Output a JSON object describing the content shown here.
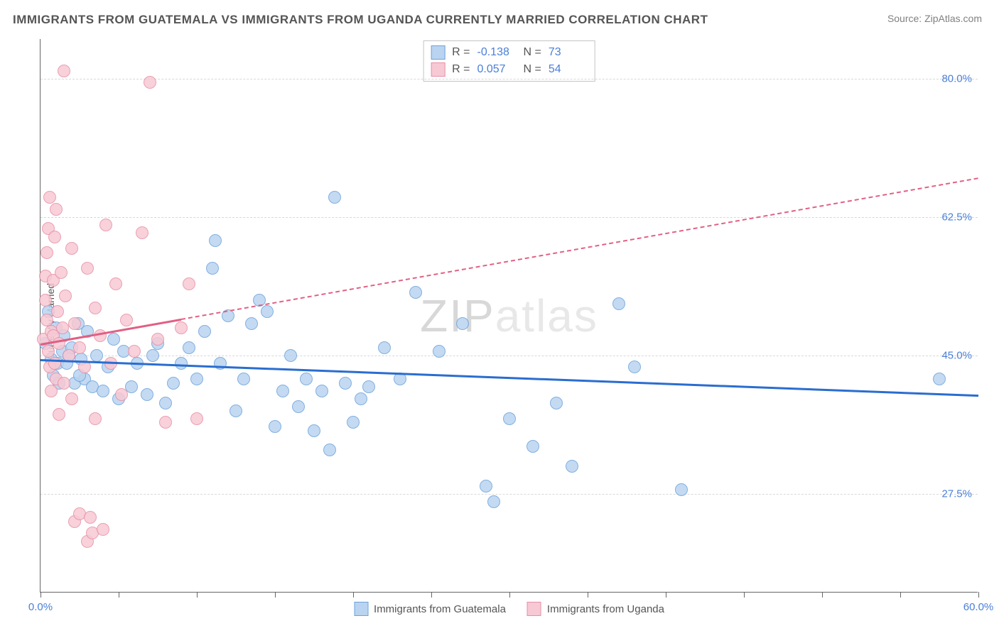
{
  "title": "IMMIGRANTS FROM GUATEMALA VS IMMIGRANTS FROM UGANDA CURRENTLY MARRIED CORRELATION CHART",
  "source": "Source: ZipAtlas.com",
  "ylabel": "Currently Married",
  "watermark_a": "ZIP",
  "watermark_b": "atlas",
  "chart": {
    "type": "scatter",
    "xlim": [
      0,
      60
    ],
    "ylim": [
      15,
      85
    ],
    "yticks": [
      {
        "v": 27.5,
        "label": "27.5%"
      },
      {
        "v": 45.0,
        "label": "45.0%"
      },
      {
        "v": 62.5,
        "label": "62.5%"
      },
      {
        "v": 80.0,
        "label": "80.0%"
      }
    ],
    "xticks": [
      0,
      5,
      10,
      15,
      20,
      25,
      30,
      35,
      40,
      45,
      50,
      55,
      60
    ],
    "xtick_labels": [
      {
        "v": 0,
        "label": "0.0%"
      },
      {
        "v": 60,
        "label": "60.0%"
      }
    ],
    "grid_color": "#d8d8d8",
    "background_color": "#ffffff",
    "marker_radius": 9,
    "series": [
      {
        "id": "guatemala",
        "label": "Immigrants from Guatemala",
        "fill": "#b9d4f0",
        "stroke": "#6ea2db",
        "line_color": "#2a6dd0",
        "line_dashed": false,
        "R": "-0.138",
        "N": "73",
        "trend": {
          "x1": 0,
          "y1": 44.5,
          "x2": 60,
          "y2": 40.0
        },
        "points": [
          [
            0.3,
            46.5
          ],
          [
            0.5,
            50.5
          ],
          [
            0.7,
            44.5
          ],
          [
            0.8,
            42.5
          ],
          [
            1.0,
            48.5
          ],
          [
            1.1,
            44.0
          ],
          [
            1.2,
            41.5
          ],
          [
            1.4,
            45.5
          ],
          [
            1.5,
            47.5
          ],
          [
            1.7,
            44.0
          ],
          [
            1.8,
            45.0
          ],
          [
            2.0,
            46.0
          ],
          [
            2.2,
            41.5
          ],
          [
            2.4,
            49.0
          ],
          [
            2.6,
            44.5
          ],
          [
            2.8,
            42.0
          ],
          [
            3.0,
            48.0
          ],
          [
            3.3,
            41.0
          ],
          [
            3.6,
            45.0
          ],
          [
            4.0,
            40.5
          ],
          [
            4.3,
            43.5
          ],
          [
            4.7,
            47.0
          ],
          [
            5.0,
            39.5
          ],
          [
            5.3,
            45.5
          ],
          [
            5.8,
            41.0
          ],
          [
            6.2,
            44.0
          ],
          [
            6.8,
            40.0
          ],
          [
            7.2,
            45.0
          ],
          [
            7.5,
            46.5
          ],
          [
            8.0,
            39.0
          ],
          [
            8.5,
            41.5
          ],
          [
            9.0,
            44.0
          ],
          [
            9.5,
            46.0
          ],
          [
            10.0,
            42.0
          ],
          [
            10.5,
            48.0
          ],
          [
            11.0,
            56.0
          ],
          [
            11.2,
            59.5
          ],
          [
            11.5,
            44.0
          ],
          [
            12.0,
            50.0
          ],
          [
            12.5,
            38.0
          ],
          [
            13.0,
            42.0
          ],
          [
            13.5,
            49.0
          ],
          [
            14.0,
            52.0
          ],
          [
            14.5,
            50.5
          ],
          [
            15.0,
            36.0
          ],
          [
            15.5,
            40.5
          ],
          [
            16.0,
            45.0
          ],
          [
            16.5,
            38.5
          ],
          [
            17.0,
            42.0
          ],
          [
            17.5,
            35.5
          ],
          [
            18.0,
            40.5
          ],
          [
            18.5,
            33.0
          ],
          [
            18.8,
            65.0
          ],
          [
            19.5,
            41.5
          ],
          [
            20.0,
            36.5
          ],
          [
            20.5,
            39.5
          ],
          [
            21.0,
            41.0
          ],
          [
            22.0,
            46.0
          ],
          [
            23.0,
            42.0
          ],
          [
            24.0,
            53.0
          ],
          [
            25.5,
            45.5
          ],
          [
            27.0,
            49.0
          ],
          [
            28.5,
            28.5
          ],
          [
            29.0,
            26.5
          ],
          [
            30.0,
            37.0
          ],
          [
            31.5,
            33.5
          ],
          [
            33.0,
            39.0
          ],
          [
            34.0,
            31.0
          ],
          [
            37.0,
            51.5
          ],
          [
            38.0,
            43.5
          ],
          [
            41.0,
            28.0
          ],
          [
            57.5,
            42.0
          ],
          [
            2.5,
            42.5
          ]
        ]
      },
      {
        "id": "uganda",
        "label": "Immigrants from Uganda",
        "fill": "#f7c9d4",
        "stroke": "#e88fa6",
        "line_color": "#e15f84",
        "line_dashed": true,
        "R": "0.057",
        "N": "54",
        "trend": {
          "x1": 0,
          "y1": 46.5,
          "x2": 60,
          "y2": 67.5
        },
        "trend_solid_until_x": 9,
        "points": [
          [
            0.2,
            47.0
          ],
          [
            0.3,
            52.0
          ],
          [
            0.3,
            55.0
          ],
          [
            0.4,
            49.5
          ],
          [
            0.4,
            58.0
          ],
          [
            0.5,
            45.5
          ],
          [
            0.5,
            61.0
          ],
          [
            0.6,
            43.5
          ],
          [
            0.6,
            65.0
          ],
          [
            0.7,
            48.0
          ],
          [
            0.7,
            40.5
          ],
          [
            0.8,
            54.5
          ],
          [
            0.8,
            47.5
          ],
          [
            0.9,
            60.0
          ],
          [
            0.9,
            44.0
          ],
          [
            1.0,
            63.5
          ],
          [
            1.0,
            42.0
          ],
          [
            1.1,
            50.5
          ],
          [
            1.2,
            46.5
          ],
          [
            1.2,
            37.5
          ],
          [
            1.3,
            55.5
          ],
          [
            1.4,
            48.5
          ],
          [
            1.5,
            41.5
          ],
          [
            1.5,
            81.0
          ],
          [
            1.6,
            52.5
          ],
          [
            1.8,
            45.0
          ],
          [
            2.0,
            39.5
          ],
          [
            2.0,
            58.5
          ],
          [
            2.2,
            49.0
          ],
          [
            2.2,
            24.0
          ],
          [
            2.5,
            46.0
          ],
          [
            2.5,
            25.0
          ],
          [
            2.8,
            43.5
          ],
          [
            3.0,
            21.5
          ],
          [
            3.0,
            56.0
          ],
          [
            3.2,
            24.5
          ],
          [
            3.3,
            22.5
          ],
          [
            3.5,
            51.0
          ],
          [
            3.5,
            37.0
          ],
          [
            3.8,
            47.5
          ],
          [
            4.0,
            23.0
          ],
          [
            4.2,
            61.5
          ],
          [
            4.5,
            44.0
          ],
          [
            4.8,
            54.0
          ],
          [
            5.2,
            40.0
          ],
          [
            5.5,
            49.5
          ],
          [
            6.0,
            45.5
          ],
          [
            6.5,
            60.5
          ],
          [
            7.0,
            79.5
          ],
          [
            7.5,
            47.0
          ],
          [
            8.0,
            36.5
          ],
          [
            9.0,
            48.5
          ],
          [
            9.5,
            54.0
          ],
          [
            10.0,
            37.0
          ]
        ]
      }
    ]
  },
  "legend_series1": "Immigrants from Guatemala",
  "legend_series2": "Immigrants from Uganda"
}
